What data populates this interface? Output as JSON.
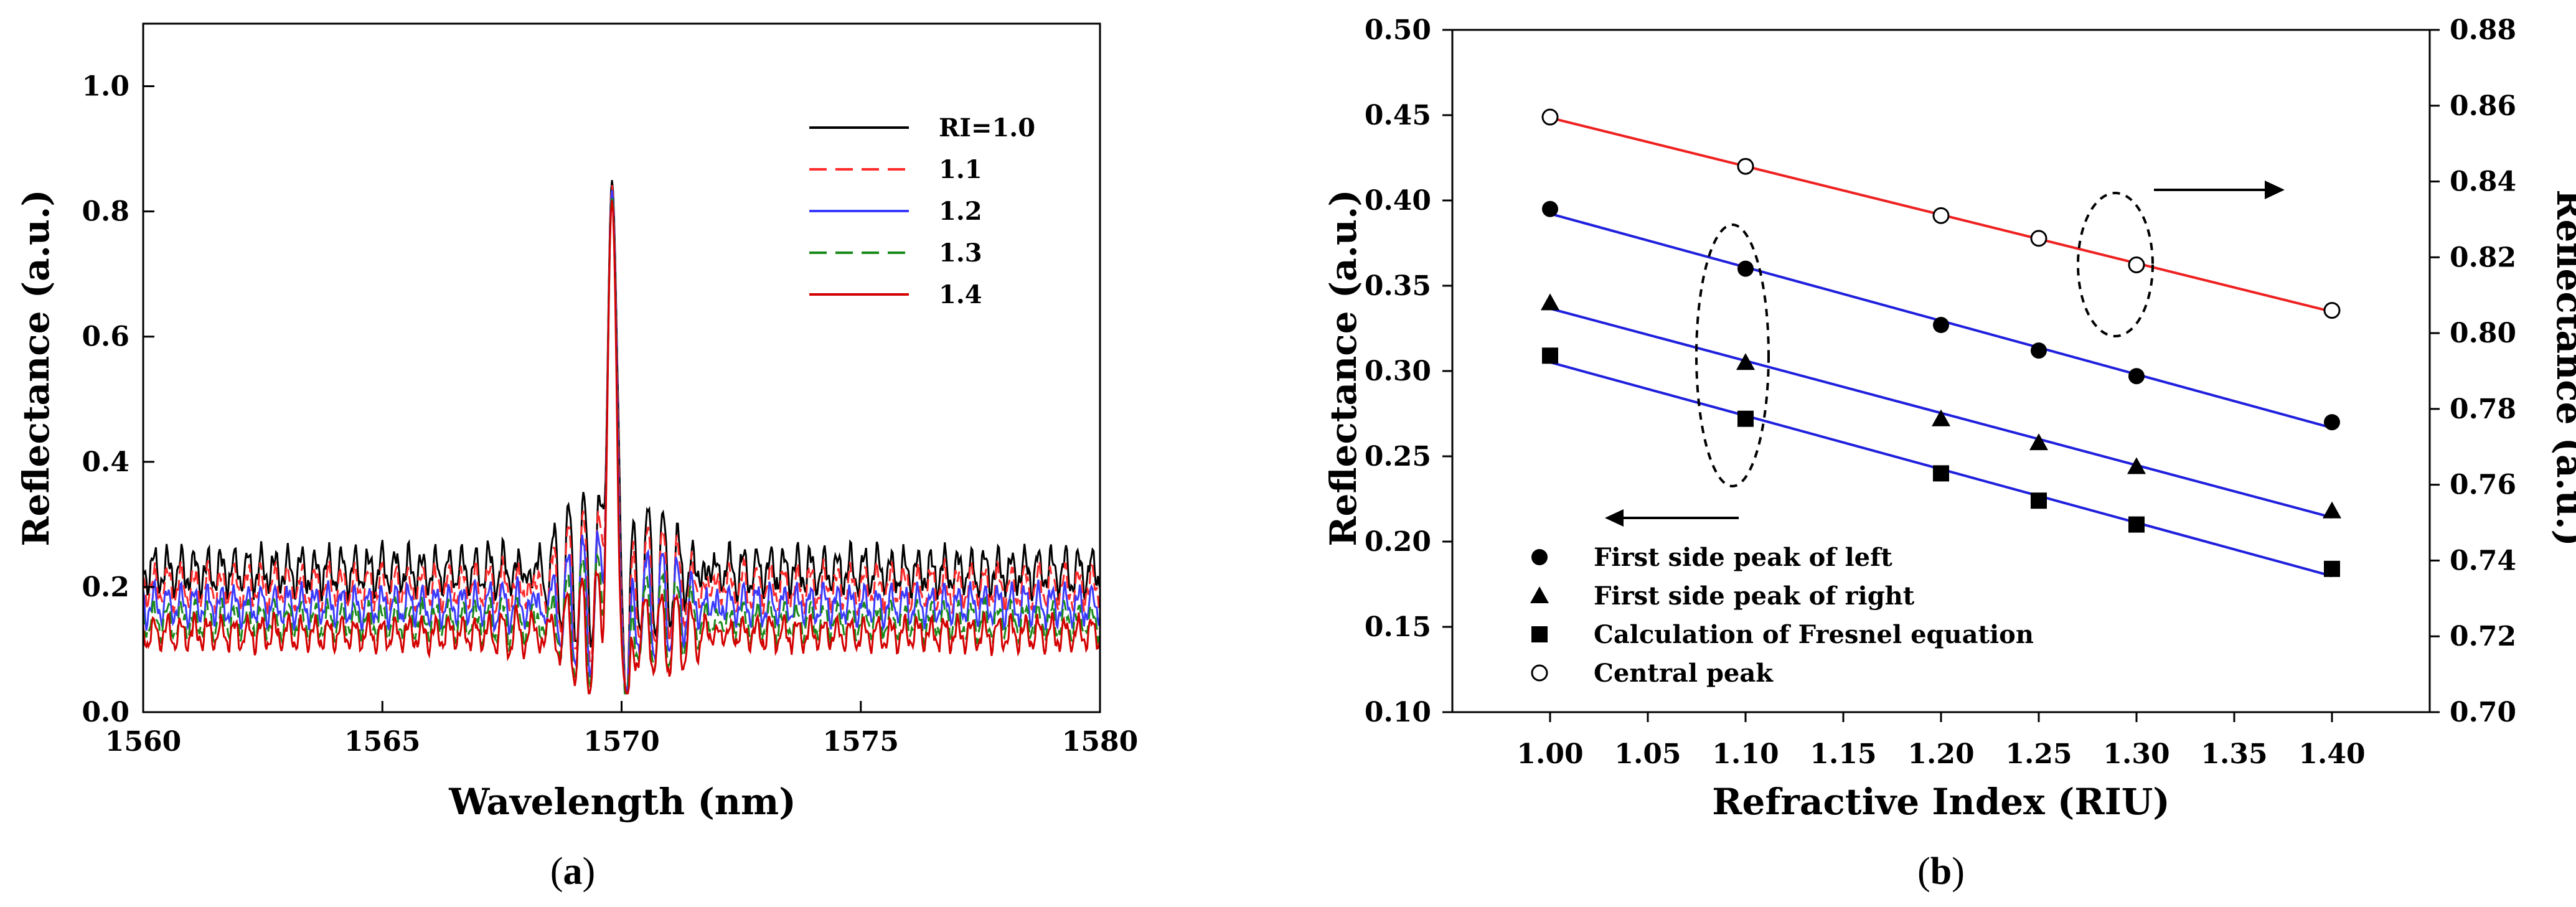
{
  "chart_data": [
    {
      "id": "a",
      "type": "line",
      "panel_label": "a",
      "xlabel": "Wavelength (nm)",
      "ylabel": "Reflectance (a.u.)",
      "xlim": [
        1560,
        1580
      ],
      "ylim": [
        0.0,
        1.1
      ],
      "xticks": [
        "1560",
        "1565",
        "1570",
        "1575",
        "1580"
      ],
      "yticks": [
        "0.0",
        "0.2",
        "0.4",
        "0.6",
        "0.8",
        "1.0"
      ],
      "legend_position": "top-right",
      "peak": {
        "x": 1569.8,
        "y": 0.85
      },
      "series": [
        {
          "name": "RI=1.0",
          "color": "#000000",
          "style": "solid",
          "baseline": 0.225,
          "amplitude": 0.03
        },
        {
          "name": "1.1",
          "color": "#ff2a2a",
          "style": "dashed",
          "baseline": 0.2,
          "amplitude": 0.028
        },
        {
          "name": "1.2",
          "color": "#3b3bff",
          "style": "solid",
          "baseline": 0.17,
          "amplitude": 0.026
        },
        {
          "name": "1.3",
          "color": "#1a8a1a",
          "style": "dashed",
          "baseline": 0.145,
          "amplitude": 0.024
        },
        {
          "name": "1.4",
          "color": "#d40000",
          "style": "solid",
          "baseline": 0.125,
          "amplitude": 0.022
        }
      ]
    },
    {
      "id": "b",
      "type": "scatter",
      "panel_label": "b",
      "xlabel": "Refractive Index (RIU)",
      "ylabel_left": "Reflectance (a.u.)",
      "ylabel_right": "Reflectance (a.u.)",
      "xlim": [
        0.95,
        1.45
      ],
      "ylim_left": [
        0.1,
        0.5
      ],
      "ylim_right": [
        0.7,
        0.88
      ],
      "xticks": [
        "1.00",
        "1.05",
        "1.10",
        "1.15",
        "1.20",
        "1.25",
        "1.30",
        "1.35",
        "1.40"
      ],
      "yticks_left": [
        "0.10",
        "0.15",
        "0.20",
        "0.25",
        "0.30",
        "0.35",
        "0.40",
        "0.45",
        "0.50"
      ],
      "yticks_right": [
        "0.70",
        "0.72",
        "0.74",
        "0.76",
        "0.78",
        "0.80",
        "0.82",
        "0.84",
        "0.86",
        "0.88"
      ],
      "legend_position": "bottom-left",
      "series": [
        {
          "name": "First side peak of left",
          "marker": "circle",
          "axis": "left",
          "line_color": "#1f1fdd",
          "x": [
            1.0,
            1.1,
            1.2,
            1.25,
            1.3,
            1.4
          ],
          "y": [
            0.395,
            0.36,
            0.327,
            0.312,
            0.297,
            0.27
          ]
        },
        {
          "name": "First side peak of right",
          "marker": "triangle",
          "axis": "left",
          "line_color": "#1f1fdd",
          "x": [
            1.0,
            1.1,
            1.2,
            1.25,
            1.3,
            1.4
          ],
          "y": [
            0.34,
            0.305,
            0.272,
            0.258,
            0.244,
            0.218
          ]
        },
        {
          "name": "Calculation of Fresnel equation",
          "marker": "square",
          "axis": "left",
          "line_color": "#1f1fdd",
          "x": [
            1.0,
            1.1,
            1.2,
            1.25,
            1.3,
            1.4
          ],
          "y": [
            0.309,
            0.272,
            0.24,
            0.224,
            0.21,
            0.184
          ]
        },
        {
          "name": "Central peak",
          "marker": "open-circle",
          "axis": "right",
          "line_color": "#ee2020",
          "x": [
            1.0,
            1.1,
            1.2,
            1.25,
            1.3,
            1.4
          ],
          "y": [
            0.857,
            0.844,
            0.831,
            0.825,
            0.818,
            0.806
          ]
        }
      ]
    }
  ]
}
